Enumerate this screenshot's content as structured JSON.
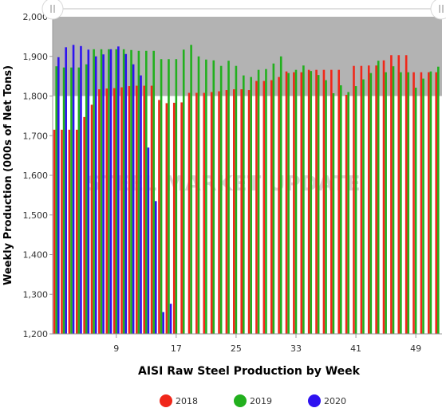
{
  "chart_data": {
    "type": "bar",
    "xlabel": "AISI Raw Steel Production by Week",
    "ylabel": "Weekly Production (000s of Net Tons)",
    "watermark": "STEEL MARKET UPDATE",
    "ylim": [
      1200,
      2000
    ],
    "yticks": [
      1200,
      1300,
      1400,
      1500,
      1600,
      1700,
      1800,
      1900,
      2000
    ],
    "xticks": [
      9,
      17,
      25,
      33,
      41,
      49
    ],
    "xlim": [
      1,
      52
    ],
    "grid": false,
    "legend_position": "bottom",
    "colors": {
      "2018": "#f0271a",
      "2019": "#22b01e",
      "2020": "#2e12f0",
      "plot_background": "#b3b3b3"
    },
    "series": [
      {
        "name": "2018",
        "values": [
          1715,
          1715,
          1715,
          1715,
          1747,
          1778,
          1817,
          1819,
          1820,
          1822,
          1825,
          1826,
          1826,
          1826,
          1790,
          1782,
          1783,
          1784,
          1808,
          1808,
          1808,
          1810,
          1812,
          1815,
          1817,
          1817,
          1815,
          1838,
          1838,
          1840,
          1848,
          1862,
          1860,
          1860,
          1866,
          1866,
          1866,
          1866,
          1866,
          1803,
          1876,
          1876,
          1877,
          1877,
          1890,
          1903,
          1903,
          1903,
          1860,
          1860,
          1860,
          1860
        ]
      },
      {
        "name": "2019",
        "values": [
          1875,
          1872,
          1872,
          1872,
          1880,
          1918,
          1918,
          1918,
          1918,
          1918,
          1916,
          1914,
          1914,
          1914,
          1893,
          1893,
          1893,
          1917,
          1929,
          1900,
          1892,
          1890,
          1876,
          1889,
          1876,
          1852,
          1848,
          1866,
          1868,
          1882,
          1900,
          1858,
          1866,
          1877,
          1863,
          1853,
          1840,
          1807,
          1827,
          1810,
          1825,
          1842,
          1858,
          1889,
          1860,
          1875,
          1860,
          1860,
          1821,
          1844,
          1862,
          1874
        ]
      },
      {
        "name": "2020",
        "values": [
          1898,
          1923,
          1929,
          1926,
          1917,
          1900,
          1905,
          1918,
          1925,
          1906,
          1880,
          1852,
          1670,
          1535,
          1255,
          1276
        ]
      }
    ]
  }
}
